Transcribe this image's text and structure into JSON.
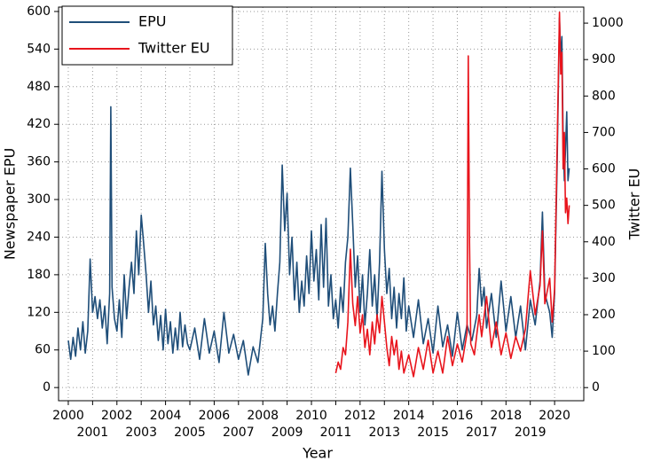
{
  "chart_data": {
    "type": "line",
    "x_label": "Year",
    "y_label": "Newspaper EPU",
    "y2_label": "Twitter EU",
    "xlim": [
      1999.6,
      2021.2
    ],
    "xticks": [
      2000,
      2001,
      2002,
      2003,
      2004,
      2005,
      2006,
      2007,
      2008,
      2009,
      2010,
      2011,
      2012,
      2013,
      2014,
      2015,
      2016,
      2017,
      2018,
      2019,
      2020
    ],
    "ylim": [
      -21,
      607
    ],
    "yticks": [
      0,
      60,
      120,
      180,
      240,
      300,
      360,
      420,
      480,
      540,
      600
    ],
    "y2lim": [
      -36,
      1044
    ],
    "y2ticks": [
      0,
      100,
      200,
      300,
      400,
      500,
      600,
      700,
      800,
      900,
      1000
    ],
    "grid": true,
    "legend": "upper left",
    "series": [
      {
        "name": "EPU",
        "color": "#1f4e79",
        "x": [
          2000.0,
          2000.1,
          2000.2,
          2000.3,
          2000.4,
          2000.5,
          2000.6,
          2000.7,
          2000.8,
          2000.9,
          2001.0,
          2001.1,
          2001.2,
          2001.3,
          2001.4,
          2001.5,
          2001.6,
          2001.7,
          2001.75,
          2001.8,
          2001.9,
          2002.0,
          2002.1,
          2002.2,
          2002.3,
          2002.4,
          2002.5,
          2002.6,
          2002.7,
          2002.8,
          2002.9,
          2003.0,
          2003.1,
          2003.2,
          2003.3,
          2003.4,
          2003.5,
          2003.6,
          2003.7,
          2003.8,
          2003.9,
          2004.0,
          2004.1,
          2004.2,
          2004.3,
          2004.4,
          2004.5,
          2004.6,
          2004.7,
          2004.8,
          2004.9,
          2005.0,
          2005.2,
          2005.4,
          2005.6,
          2005.8,
          2006.0,
          2006.2,
          2006.4,
          2006.6,
          2006.8,
          2007.0,
          2007.2,
          2007.4,
          2007.6,
          2007.8,
          2008.0,
          2008.1,
          2008.2,
          2008.3,
          2008.4,
          2008.5,
          2008.6,
          2008.7,
          2008.8,
          2008.9,
          2009.0,
          2009.1,
          2009.2,
          2009.3,
          2009.4,
          2009.5,
          2009.6,
          2009.7,
          2009.8,
          2009.9,
          2010.0,
          2010.1,
          2010.2,
          2010.3,
          2010.4,
          2010.5,
          2010.6,
          2010.7,
          2010.8,
          2010.9,
          2011.0,
          2011.1,
          2011.2,
          2011.3,
          2011.4,
          2011.5,
          2011.6,
          2011.7,
          2011.8,
          2011.9,
          2012.0,
          2012.1,
          2012.2,
          2012.3,
          2012.4,
          2012.5,
          2012.6,
          2012.7,
          2012.8,
          2012.9,
          2013.0,
          2013.1,
          2013.2,
          2013.3,
          2013.4,
          2013.5,
          2013.6,
          2013.7,
          2013.8,
          2013.9,
          2014.0,
          2014.2,
          2014.4,
          2014.6,
          2014.8,
          2015.0,
          2015.2,
          2015.4,
          2015.6,
          2015.8,
          2016.0,
          2016.2,
          2016.4,
          2016.6,
          2016.8,
          2016.9,
          2017.0,
          2017.1,
          2017.2,
          2017.4,
          2017.6,
          2017.8,
          2018.0,
          2018.2,
          2018.4,
          2018.6,
          2018.8,
          2019.0,
          2019.2,
          2019.4,
          2019.5,
          2019.6,
          2019.8,
          2019.9,
          2020.0,
          2020.1,
          2020.2,
          2020.25,
          2020.3,
          2020.35,
          2020.4,
          2020.45,
          2020.5,
          2020.55,
          2020.6
        ],
        "values": [
          75,
          45,
          80,
          50,
          95,
          60,
          105,
          55,
          90,
          205,
          120,
          145,
          110,
          140,
          95,
          130,
          70,
          150,
          448,
          160,
          110,
          90,
          140,
          80,
          180,
          110,
          160,
          200,
          150,
          250,
          180,
          275,
          230,
          180,
          120,
          170,
          100,
          130,
          75,
          115,
          60,
          125,
          70,
          105,
          55,
          95,
          60,
          120,
          65,
          100,
          70,
          60,
          95,
          45,
          110,
          55,
          90,
          40,
          120,
          55,
          85,
          45,
          75,
          20,
          65,
          40,
          110,
          230,
          150,
          100,
          130,
          90,
          150,
          200,
          355,
          250,
          310,
          180,
          240,
          140,
          200,
          120,
          170,
          130,
          210,
          150,
          250,
          170,
          220,
          140,
          260,
          160,
          270,
          130,
          180,
          110,
          140,
          95,
          160,
          120,
          200,
          240,
          350,
          260,
          160,
          210,
          120,
          180,
          100,
          150,
          220,
          130,
          180,
          110,
          200,
          345,
          220,
          150,
          190,
          110,
          160,
          95,
          150,
          110,
          175,
          90,
          130,
          80,
          140,
          70,
          110,
          55,
          130,
          65,
          100,
          50,
          120,
          60,
          100,
          75,
          115,
          190,
          130,
          160,
          95,
          150,
          80,
          170,
          90,
          145,
          80,
          130,
          60,
          140,
          100,
          170,
          280,
          150,
          120,
          80,
          150,
          350,
          590,
          520,
          560,
          400,
          330,
          380,
          440,
          330,
          350
        ]
      },
      {
        "name": "Twitter EU",
        "color": "#e8141c",
        "axis": "y2",
        "x": [
          2011.0,
          2011.1,
          2011.2,
          2011.3,
          2011.4,
          2011.5,
          2011.6,
          2011.7,
          2011.8,
          2011.9,
          2012.0,
          2012.1,
          2012.2,
          2012.3,
          2012.4,
          2012.5,
          2012.6,
          2012.7,
          2012.8,
          2012.9,
          2013.0,
          2013.1,
          2013.2,
          2013.3,
          2013.4,
          2013.5,
          2013.6,
          2013.7,
          2013.8,
          2014.0,
          2014.2,
          2014.4,
          2014.6,
          2014.8,
          2015.0,
          2015.2,
          2015.4,
          2015.6,
          2015.8,
          2016.0,
          2016.2,
          2016.4,
          2016.45,
          2016.5,
          2016.55,
          2016.7,
          2016.9,
          2017.0,
          2017.2,
          2017.4,
          2017.6,
          2017.8,
          2018.0,
          2018.2,
          2018.4,
          2018.6,
          2018.8,
          2019.0,
          2019.2,
          2019.4,
          2019.5,
          2019.6,
          2019.8,
          2019.9,
          2020.0,
          2020.1,
          2020.2,
          2020.25,
          2020.3,
          2020.35,
          2020.4,
          2020.45,
          2020.5,
          2020.55,
          2020.6
        ],
        "values": [
          40,
          70,
          50,
          110,
          90,
          180,
          380,
          230,
          170,
          250,
          150,
          200,
          110,
          160,
          90,
          180,
          120,
          200,
          150,
          250,
          180,
          110,
          60,
          140,
          90,
          130,
          50,
          100,
          40,
          90,
          30,
          110,
          50,
          130,
          40,
          100,
          40,
          140,
          60,
          120,
          70,
          150,
          910,
          400,
          120,
          90,
          200,
          140,
          250,
          110,
          180,
          90,
          150,
          80,
          140,
          100,
          160,
          320,
          200,
          280,
          430,
          230,
          300,
          180,
          270,
          650,
          1030,
          860,
          920,
          600,
          700,
          480,
          520,
          450,
          500
        ]
      }
    ]
  }
}
